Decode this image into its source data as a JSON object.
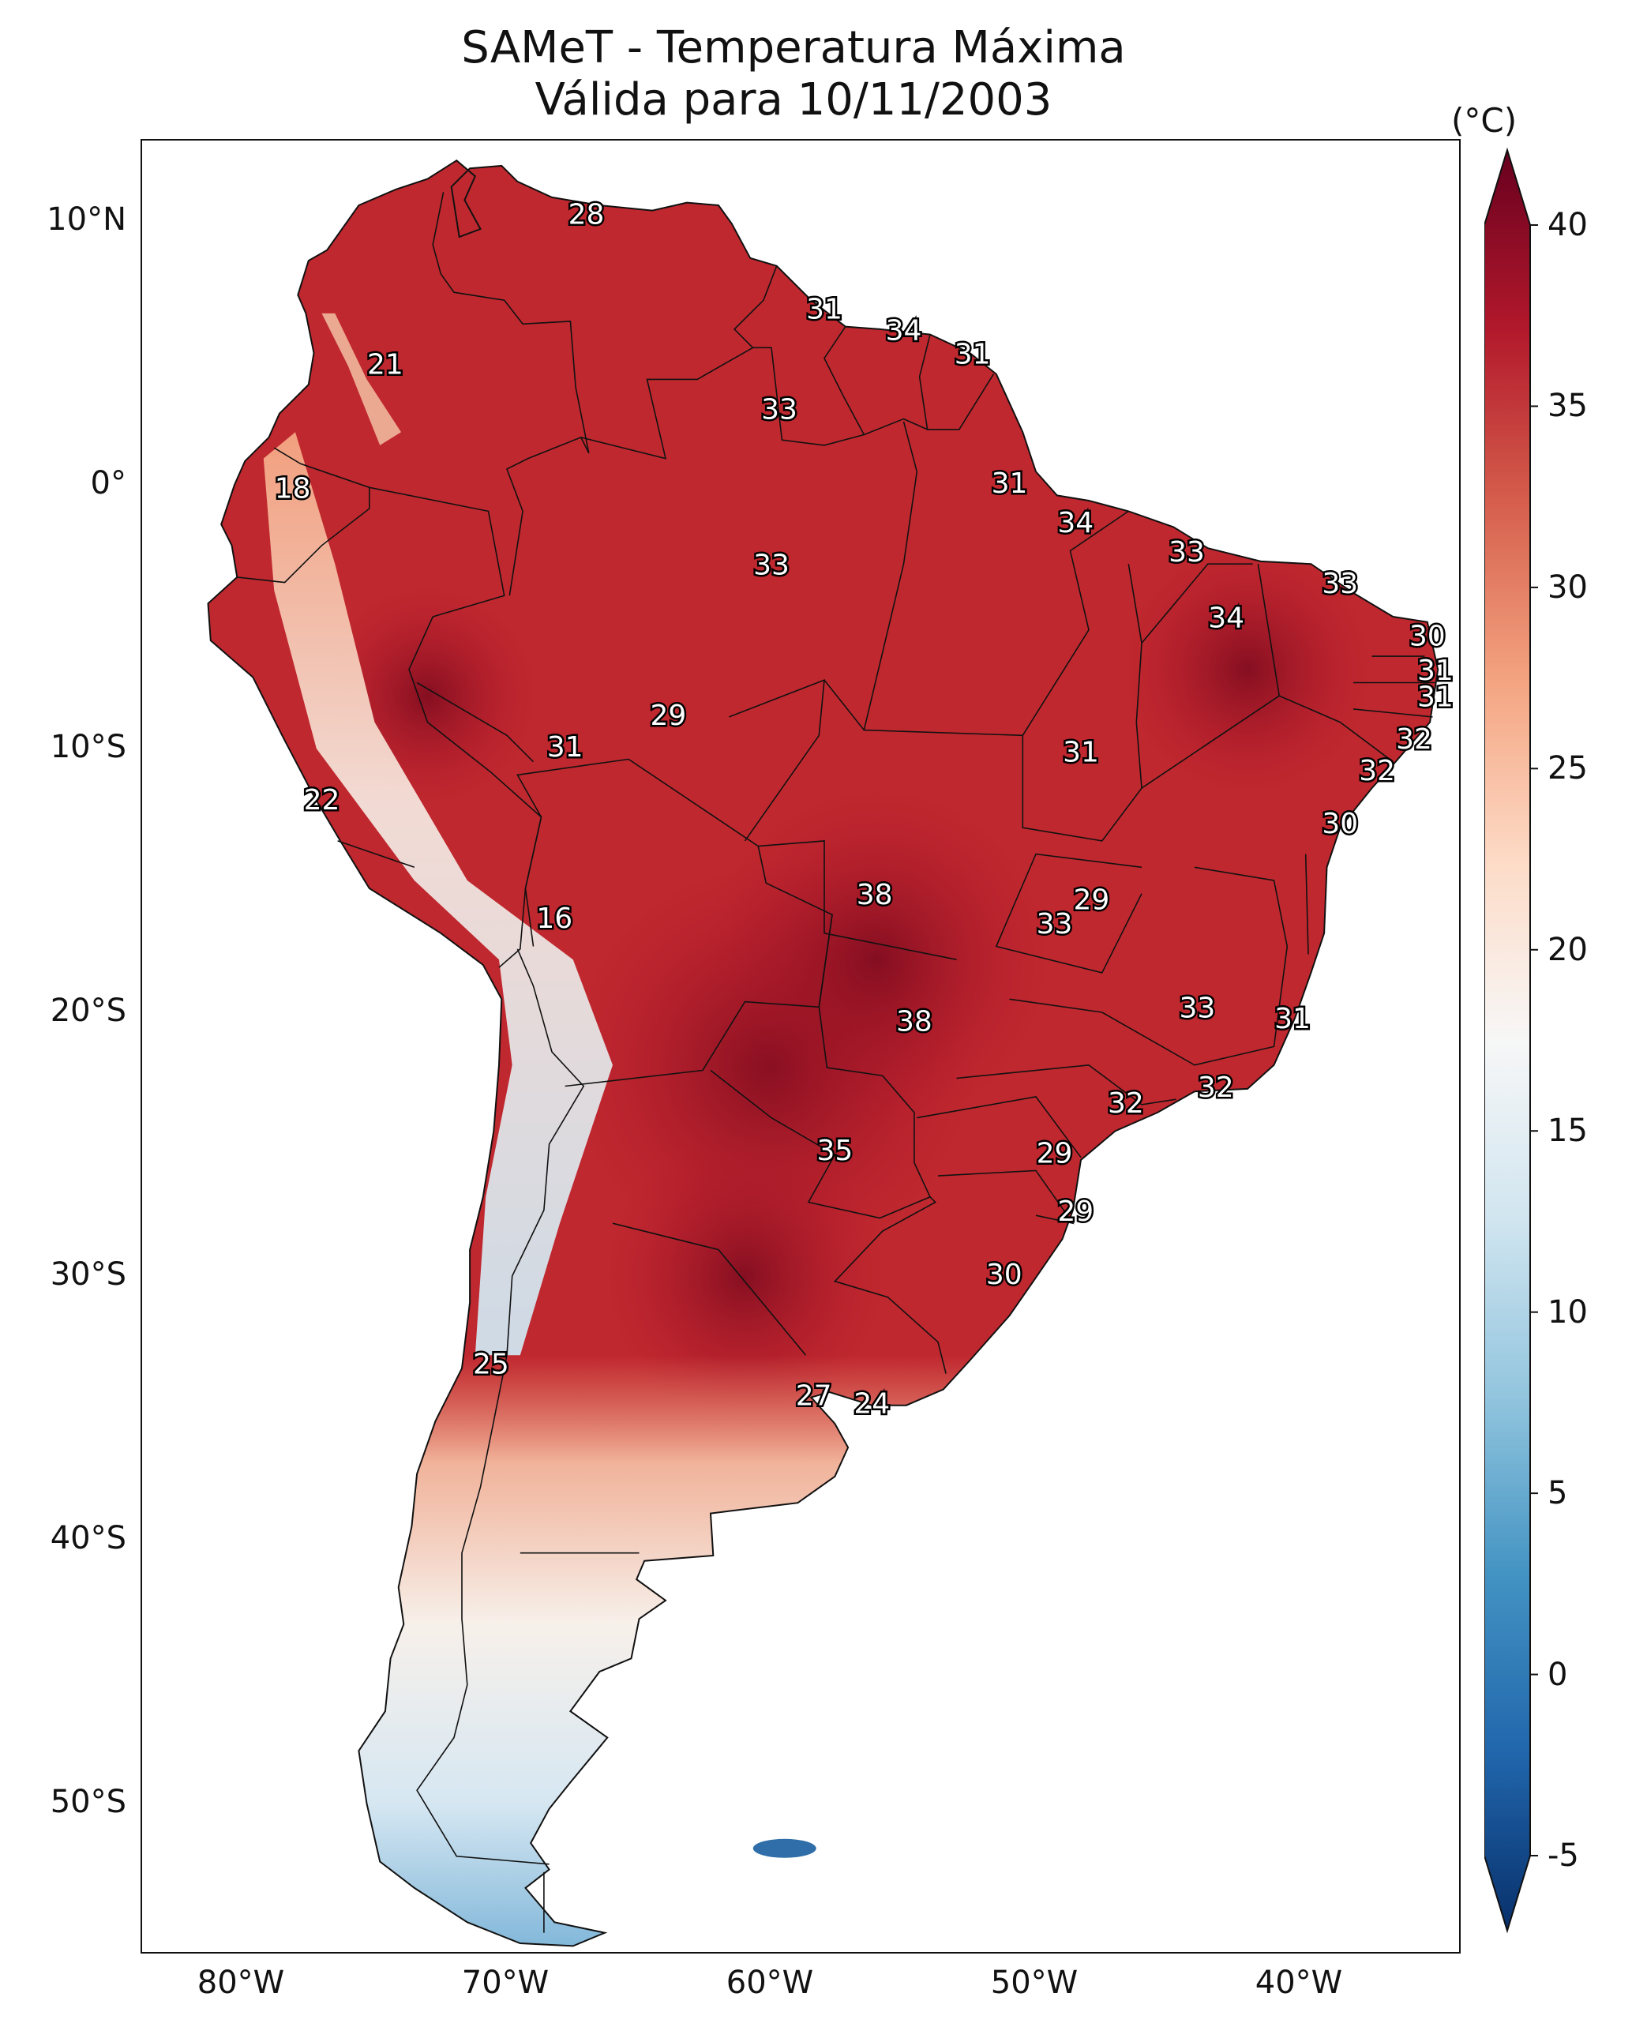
{
  "title": {
    "line1": "SAMeT - Temperatura Máxima",
    "line2": "Válida para 10/11/2003"
  },
  "lat_ticks": [
    "10°N",
    "0°",
    "10°S",
    "20°S",
    "30°S",
    "40°S",
    "50°S"
  ],
  "lon_ticks": [
    "80°W",
    "70°W",
    "60°W",
    "50°W",
    "40°W"
  ],
  "colorbar": {
    "unit": "(°C)",
    "ticks": [
      "40",
      "35",
      "30",
      "25",
      "20",
      "15",
      "10",
      "5",
      "0",
      "-5"
    ],
    "range": [
      -5,
      40
    ],
    "colors": [
      "#08306b",
      "#2166ac",
      "#4393c3",
      "#92c5de",
      "#d1e5f0",
      "#f7f7f7",
      "#fddbc7",
      "#f4a582",
      "#d6604d",
      "#b2182b",
      "#67001f"
    ]
  },
  "station_values": [
    {
      "value": "28",
      "lon": -67.0,
      "lat": 10.2
    },
    {
      "value": "21",
      "lon": -74.6,
      "lat": 4.5
    },
    {
      "value": "18",
      "lon": -78.1,
      "lat": -0.2
    },
    {
      "value": "31",
      "lon": -58.0,
      "lat": 6.6
    },
    {
      "value": "34",
      "lon": -55.0,
      "lat": 5.8
    },
    {
      "value": "31",
      "lon": -52.4,
      "lat": 4.9
    },
    {
      "value": "33",
      "lon": -59.7,
      "lat": 2.8
    },
    {
      "value": "31",
      "lon": -51.0,
      "lat": 0.0
    },
    {
      "value": "33",
      "lon": -60.0,
      "lat": -3.1
    },
    {
      "value": "34",
      "lon": -48.5,
      "lat": -1.5
    },
    {
      "value": "33",
      "lon": -44.3,
      "lat": -2.6
    },
    {
      "value": "33",
      "lon": -38.5,
      "lat": -3.8
    },
    {
      "value": "34",
      "lon": -42.8,
      "lat": -5.1
    },
    {
      "value": "30",
      "lon": -35.2,
      "lat": -5.8
    },
    {
      "value": "31",
      "lon": -34.9,
      "lat": -7.1
    },
    {
      "value": "31",
      "lon": -34.9,
      "lat": -8.1
    },
    {
      "value": "32",
      "lon": -35.7,
      "lat": -9.7
    },
    {
      "value": "32",
      "lon": -37.1,
      "lat": -10.9
    },
    {
      "value": "30",
      "lon": -38.5,
      "lat": -12.9
    },
    {
      "value": "29",
      "lon": -63.9,
      "lat": -8.8
    },
    {
      "value": "31",
      "lon": -67.8,
      "lat": -10.0
    },
    {
      "value": "31",
      "lon": -48.3,
      "lat": -10.2
    },
    {
      "value": "22",
      "lon": -77.0,
      "lat": -12.0
    },
    {
      "value": "38",
      "lon": -56.1,
      "lat": -15.6
    },
    {
      "value": "29",
      "lon": -47.9,
      "lat": -15.8
    },
    {
      "value": "33",
      "lon": -49.3,
      "lat": -16.7
    },
    {
      "value": "16",
      "lon": -68.2,
      "lat": -16.5
    },
    {
      "value": "33",
      "lon": -43.9,
      "lat": -19.9
    },
    {
      "value": "31",
      "lon": -40.3,
      "lat": -20.3
    },
    {
      "value": "38",
      "lon": -54.6,
      "lat": -20.4
    },
    {
      "value": "32",
      "lon": -43.2,
      "lat": -22.9
    },
    {
      "value": "32",
      "lon": -46.6,
      "lat": -23.5
    },
    {
      "value": "35",
      "lon": -57.6,
      "lat": -25.3
    },
    {
      "value": "29",
      "lon": -49.3,
      "lat": -25.4
    },
    {
      "value": "29",
      "lon": -48.5,
      "lat": -27.6
    },
    {
      "value": "30",
      "lon": -51.2,
      "lat": -30.0
    },
    {
      "value": "25",
      "lon": -70.6,
      "lat": -33.4
    },
    {
      "value": "27",
      "lon": -58.4,
      "lat": -34.6
    },
    {
      "value": "24",
      "lon": -56.2,
      "lat": -34.9
    }
  ]
}
